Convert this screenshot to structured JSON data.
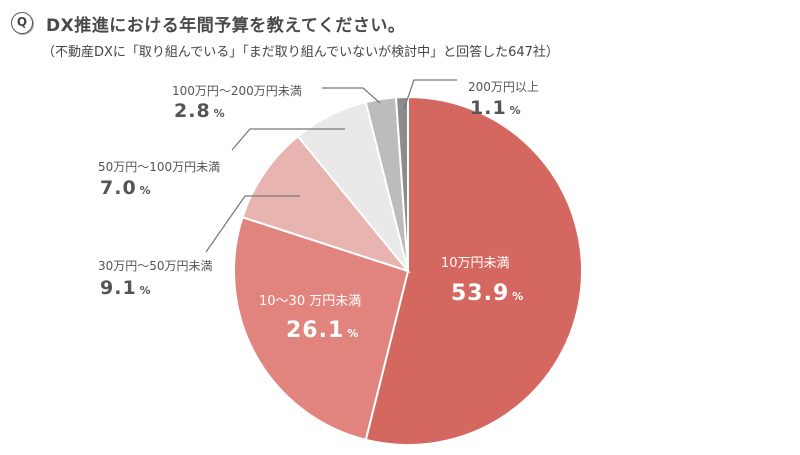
{
  "header": {
    "badge": "Q",
    "title": "DX推進における年間予算を教えてください。",
    "subtitle": "（不動産DXに「取り組んでいる」「まだ取り組んでいないが検討中」と回答した647社）"
  },
  "chart_data": {
    "type": "pie",
    "title": "DX推進における年間予算を教えてください。",
    "subtitle": "（不動産DXに「取り組んでいる」「まだ取り組んでいないが検討中」と回答した647社）",
    "unit": "%",
    "slices": [
      {
        "label": "10万円未満",
        "value": 53.9,
        "value_text": "53.9",
        "color": "#d46860"
      },
      {
        "label": "10〜30 万円未満",
        "value": 26.1,
        "value_text": "26.1",
        "color": "#e1847d"
      },
      {
        "label": "30万円〜50万円未満",
        "value": 9.1,
        "value_text": "9.1",
        "color": "#e8b4b0"
      },
      {
        "label": "50万円〜100万円未満",
        "value": 7.0,
        "value_text": "7.0",
        "color": "#e9e9e9"
      },
      {
        "label": "100万円〜200万円未満",
        "value": 2.8,
        "value_text": "2.8",
        "color": "#bcbcbc"
      },
      {
        "label": "200万円以上",
        "value": 1.1,
        "value_text": "1.1",
        "color": "#8c8c8c"
      }
    ]
  }
}
